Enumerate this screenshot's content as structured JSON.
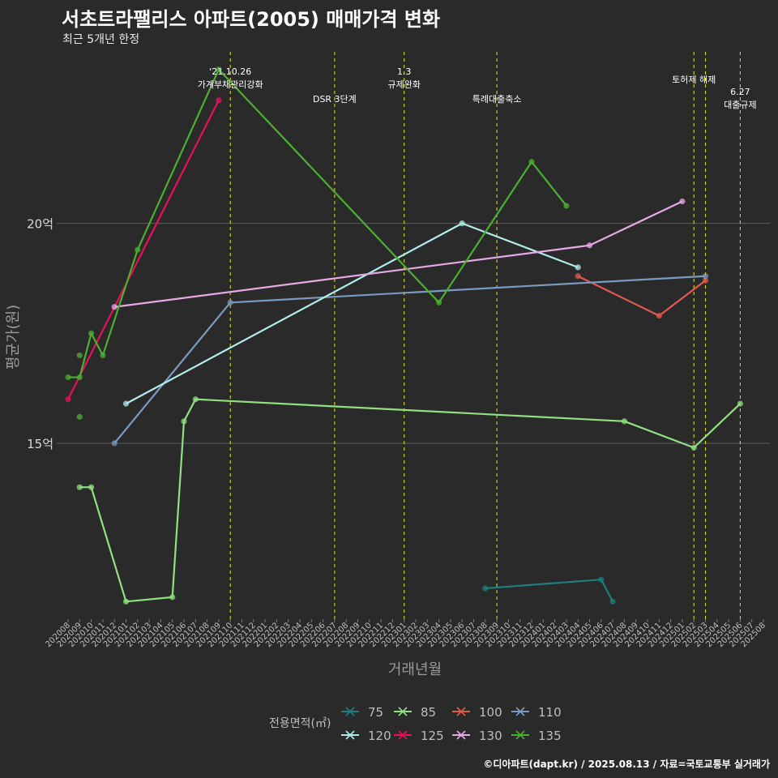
{
  "header": {
    "title": "서초트라팰리스 아파트(2005) 매매가격 변화",
    "subtitle": "최근 5개년 한정",
    "caption": "©디아파트(dapt.kr) / 2025.08.13 / 자료=국토교통부 실거래가"
  },
  "chart_data": {
    "type": "line",
    "xlabel": "거래년월",
    "ylabel": "평균가(원)",
    "y_unit": "억",
    "ylim": [
      11.0,
      23.9
    ],
    "yticks": [
      15,
      20
    ],
    "ytick_labels": [
      "15억",
      "20억"
    ],
    "categories": [
      "202008",
      "202009",
      "202010",
      "202011",
      "202012",
      "202101",
      "202102",
      "202103",
      "202104",
      "202105",
      "202106",
      "202107",
      "202108",
      "202109",
      "202110",
      "202111",
      "202112",
      "202201",
      "202202",
      "202203",
      "202204",
      "202205",
      "202206",
      "202207",
      "202208",
      "202209",
      "202210",
      "202211",
      "202212",
      "202301",
      "202302",
      "202303",
      "202304",
      "202305",
      "202306",
      "202307",
      "202308",
      "202309",
      "202310",
      "202311",
      "202312",
      "202401",
      "202402",
      "202403",
      "202404",
      "202405",
      "202406",
      "202407",
      "202408",
      "202409",
      "202410",
      "202411",
      "202412",
      "202501",
      "202502",
      "202503",
      "202504",
      "202505",
      "202506",
      "202507",
      "202508"
    ],
    "legend_title": "전용면적(㎡)",
    "series": [
      {
        "name": "75",
        "color": "#1e7f7f",
        "points": [
          {
            "x": "202308",
            "y": 11.7
          },
          {
            "x": "202406",
            "y": 11.9
          },
          {
            "x": "202407",
            "y": 11.4
          }
        ]
      },
      {
        "name": "85",
        "color": "#90e080",
        "points": [
          {
            "x": "202009",
            "y": 14.0
          },
          {
            "x": "202010",
            "y": 14.0
          },
          {
            "x": "202101",
            "y": 11.4
          },
          {
            "x": "202105",
            "y": 11.5
          },
          {
            "x": "202106",
            "y": 15.5
          },
          {
            "x": "202107",
            "y": 16.0
          },
          {
            "x": "202408",
            "y": 15.5
          },
          {
            "x": "202502",
            "y": 14.9
          },
          {
            "x": "202506",
            "y": 15.9
          }
        ]
      },
      {
        "name": "100",
        "color": "#e05a4e",
        "points": [
          {
            "x": "202404",
            "y": 18.8
          },
          {
            "x": "202411",
            "y": 17.9
          },
          {
            "x": "202503",
            "y": 18.7
          }
        ]
      },
      {
        "name": "110",
        "color": "#7a9ac2",
        "points": [
          {
            "x": "202012",
            "y": 15.0
          },
          {
            "x": "202110",
            "y": 18.2
          },
          {
            "x": "202503",
            "y": 18.8
          }
        ]
      },
      {
        "name": "120",
        "color": "#b0ecec",
        "points": [
          {
            "x": "202101",
            "y": 15.9
          },
          {
            "x": "202306",
            "y": 20.0
          },
          {
            "x": "202404",
            "y": 19.0
          }
        ]
      },
      {
        "name": "125",
        "color": "#e8105a",
        "points": [
          {
            "x": "202008",
            "y": 16.0
          },
          {
            "x": "202109",
            "y": 22.8
          }
        ]
      },
      {
        "name": "130",
        "color": "#e6a8e6",
        "points": [
          {
            "x": "202012",
            "y": 18.1
          },
          {
            "x": "202405",
            "y": 19.5
          },
          {
            "x": "202501",
            "y": 20.5
          }
        ]
      },
      {
        "name": "135",
        "color": "#4caf30",
        "points": [
          {
            "x": "202008",
            "y": 16.5
          },
          {
            "x": "202009",
            "y": 16.5
          },
          {
            "x": "202010",
            "y": 17.5
          },
          {
            "x": "202011",
            "y": 17.0
          },
          {
            "x": "202102",
            "y": 19.4
          },
          {
            "x": "202109",
            "y": 23.5
          },
          {
            "x": "202304",
            "y": 18.2
          },
          {
            "x": "202312",
            "y": 21.4
          },
          {
            "x": "202403",
            "y": 20.4
          }
        ],
        "extra_points": [
          {
            "x": "202009",
            "y": 17.0
          },
          {
            "x": "202009",
            "y": 15.6
          }
        ]
      }
    ],
    "annotations": [
      {
        "x": "202110",
        "lines": [
          "'21.10.26",
          "가계부채관리강화"
        ]
      },
      {
        "x": "202207",
        "lines": [
          "DSR 3단계"
        ]
      },
      {
        "x": "202301",
        "lines": [
          "1.3",
          "규제완화"
        ]
      },
      {
        "x": "202309",
        "lines": [
          "특례대출축소"
        ]
      },
      {
        "x": "202502",
        "lines": [
          "토허제 해제"
        ]
      },
      {
        "x": "202503",
        "lines": []
      },
      {
        "x": "202506",
        "lines": [
          "6.27",
          "대출규제"
        ]
      }
    ]
  }
}
